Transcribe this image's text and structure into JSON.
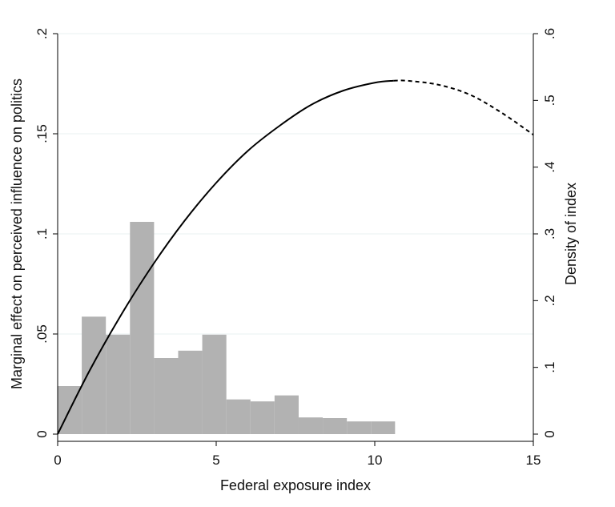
{
  "chart_data": {
    "type": "bar+line",
    "xlabel": "Federal exposure index",
    "ylabel_left": "Marginal effect on perceived influence on politics",
    "ylabel_right": "Density of index",
    "xlim": [
      0,
      15
    ],
    "ylim_left": [
      0,
      0.2
    ],
    "ylim_right": [
      0,
      0.6
    ],
    "x_ticks": [
      {
        "value": 0,
        "label": "0"
      },
      {
        "value": 5,
        "label": "5"
      },
      {
        "value": 10,
        "label": "10"
      },
      {
        "value": 15,
        "label": "15"
      }
    ],
    "y_left_ticks": [
      {
        "value": 0,
        "label": "0"
      },
      {
        "value": 0.05,
        "label": ".05"
      },
      {
        "value": 0.1,
        "label": ".1"
      },
      {
        "value": 0.15,
        "label": ".15"
      },
      {
        "value": 0.2,
        "label": ".2"
      }
    ],
    "y_right_ticks": [
      {
        "value": 0,
        "label": "0"
      },
      {
        "value": 0.1,
        "label": ".1"
      },
      {
        "value": 0.2,
        "label": ".2"
      },
      {
        "value": 0.3,
        "label": ".3"
      },
      {
        "value": 0.4,
        "label": ".4"
      },
      {
        "value": 0.5,
        "label": ".5"
      },
      {
        "value": 0.6,
        "label": ".6"
      }
    ],
    "grid": true,
    "histogram": {
      "axis": "right",
      "color": "#b2b2b2",
      "bins": [
        {
          "x0": 0.0,
          "x1": 0.76,
          "density": 0.072
        },
        {
          "x0": 0.76,
          "x1": 1.52,
          "density": 0.176
        },
        {
          "x0": 1.52,
          "x1": 2.28,
          "density": 0.149
        },
        {
          "x0": 2.28,
          "x1": 3.04,
          "density": 0.318
        },
        {
          "x0": 3.04,
          "x1": 3.8,
          "density": 0.114
        },
        {
          "x0": 3.8,
          "x1": 4.56,
          "density": 0.125
        },
        {
          "x0": 4.56,
          "x1": 5.32,
          "density": 0.149
        },
        {
          "x0": 5.32,
          "x1": 6.08,
          "density": 0.052
        },
        {
          "x0": 6.08,
          "x1": 6.84,
          "density": 0.049
        },
        {
          "x0": 6.84,
          "x1": 7.6,
          "density": 0.058
        },
        {
          "x0": 7.6,
          "x1": 8.36,
          "density": 0.025
        },
        {
          "x0": 8.36,
          "x1": 9.12,
          "density": 0.024
        },
        {
          "x0": 9.12,
          "x1": 9.88,
          "density": 0.019
        },
        {
          "x0": 9.88,
          "x1": 10.64,
          "density": 0.019
        }
      ]
    },
    "series": [
      {
        "axis": "left",
        "style": "solid",
        "color": "#000000",
        "points": [
          [
            0,
            0.0
          ],
          [
            1,
            0.0315
          ],
          [
            2,
            0.0595
          ],
          [
            3,
            0.0845
          ],
          [
            4,
            0.1065
          ],
          [
            5,
            0.1255
          ],
          [
            6,
            0.1415
          ],
          [
            7,
            0.154
          ],
          [
            8,
            0.1645
          ],
          [
            9,
            0.1715
          ],
          [
            10,
            0.1755
          ],
          [
            10.6,
            0.1765
          ]
        ]
      },
      {
        "axis": "left",
        "style": "dashed",
        "color": "#000000",
        "points": [
          [
            10.6,
            0.1765
          ],
          [
            11,
            0.1765
          ],
          [
            12,
            0.1745
          ],
          [
            13,
            0.1695
          ],
          [
            14,
            0.1605
          ],
          [
            15,
            0.1495
          ]
        ]
      }
    ]
  }
}
